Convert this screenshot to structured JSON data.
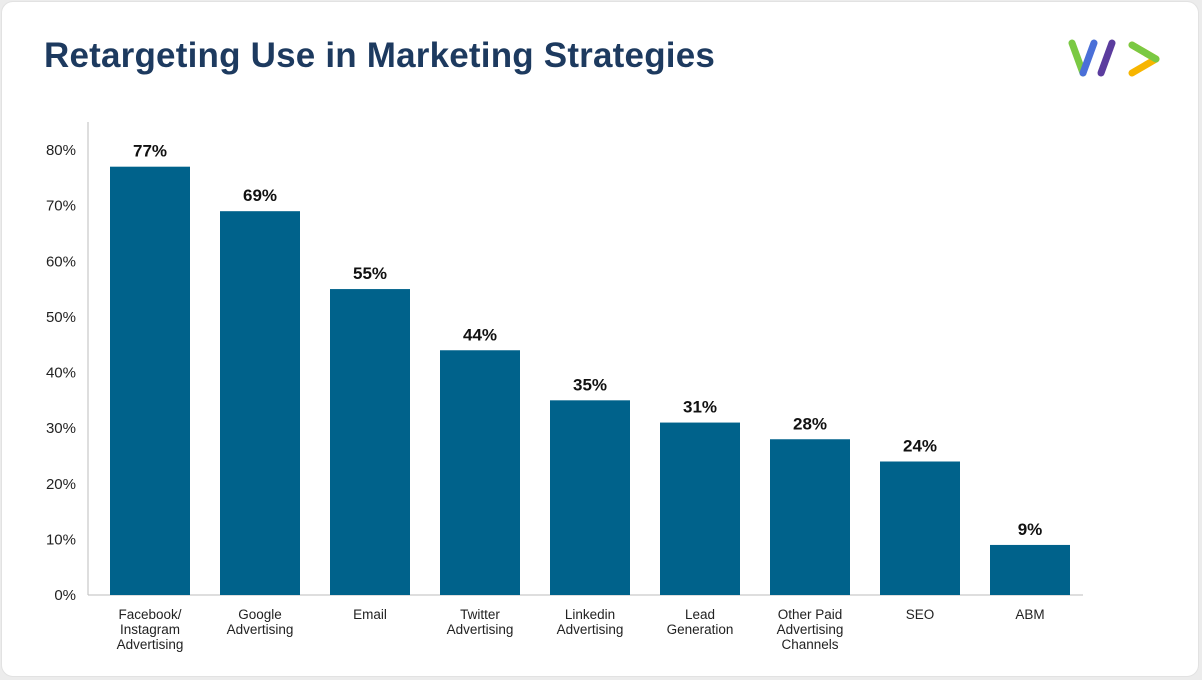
{
  "header": {
    "title": "Retargeting Use in Marketing Strategies"
  },
  "logo": {
    "icon": "brand-logo-icon",
    "colors": [
      "#7ac943",
      "#5b3c9e",
      "#f7b500"
    ]
  },
  "chart_data": {
    "type": "bar",
    "title": "Retargeting Use in Marketing Strategies",
    "xlabel": "",
    "ylabel": "",
    "ylim": [
      0,
      80
    ],
    "y_ticks": [
      0,
      10,
      20,
      30,
      40,
      50,
      60,
      70,
      80
    ],
    "y_tick_labels": [
      "0%",
      "10%",
      "20%",
      "30%",
      "40%",
      "50%",
      "60%",
      "70%",
      "80%"
    ],
    "categories": [
      [
        "Facebook/",
        "Instagram",
        "Advertising"
      ],
      [
        "Google",
        "Advertising"
      ],
      [
        "Email"
      ],
      [
        "Twitter",
        "Advertising"
      ],
      [
        "Linkedin",
        "Advertising"
      ],
      [
        "Lead",
        "Generation"
      ],
      [
        "Other Paid",
        "Advertising",
        "Channels"
      ],
      [
        "SEO"
      ],
      [
        "ABM"
      ]
    ],
    "values": [
      77,
      69,
      55,
      44,
      35,
      31,
      28,
      24,
      9
    ],
    "value_labels": [
      "77%",
      "69%",
      "55%",
      "44%",
      "35%",
      "31%",
      "28%",
      "24%",
      "9%"
    ],
    "bar_color": "#00628b",
    "grid": false,
    "legend": "none"
  }
}
